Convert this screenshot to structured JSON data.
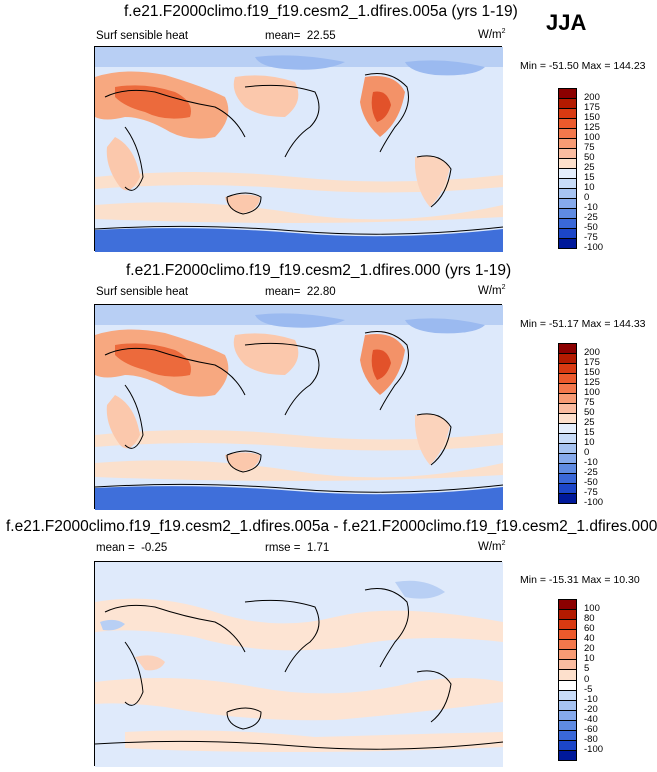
{
  "season": "JJA",
  "panels": [
    {
      "title": "f.e21.F2000climo.f19_f19.cesm2_1.dfires.005a (yrs 1-19)",
      "left_label": "Surf sensible heat",
      "mean_label": "mean=",
      "mean_value": "22.55",
      "rmse_label": "",
      "rmse_value": "",
      "units": "W/m",
      "units_exp": "2",
      "minmax": "Min = -51.50 Max = 144.23",
      "colorbar": {
        "labels": [
          "200",
          "175",
          "150",
          "125",
          "100",
          "75",
          "50",
          "25",
          "15",
          "10",
          "0",
          "-10",
          "-25",
          "-50",
          "-75",
          "-100"
        ],
        "colors": [
          "#8b0000",
          "#b31a00",
          "#d93a12",
          "#ec5a2c",
          "#f3784c",
          "#f79b74",
          "#fabca0",
          "#fde0cc",
          "#e4eefc",
          "#c8dcf8",
          "#a6c3f1",
          "#86aaec",
          "#5f8be2",
          "#3a68d8",
          "#1c46c8",
          "#00199a"
        ]
      },
      "chart_data": {
        "type": "heatmap",
        "title": "f.e21.F2000climo.f19_f19.cesm2_1.dfires.005a (yrs 1-19)",
        "variable": "Surf sensible heat",
        "units": "W/m2",
        "mean": 22.55,
        "min": -51.5,
        "max": 144.23,
        "contour_levels": [
          -100,
          -75,
          -50,
          -25,
          -10,
          0,
          10,
          15,
          25,
          50,
          75,
          100,
          125,
          150,
          175,
          200
        ]
      }
    },
    {
      "title": "f.e21.F2000climo.f19_f19.cesm2_1.dfires.000 (yrs 1-19)",
      "left_label": "Surf sensible heat",
      "mean_label": "mean=",
      "mean_value": "22.80",
      "rmse_label": "",
      "rmse_value": "",
      "units": "W/m",
      "units_exp": "2",
      "minmax": "Min = -51.17 Max = 144.33",
      "colorbar": {
        "labels": [
          "200",
          "175",
          "150",
          "125",
          "100",
          "75",
          "50",
          "25",
          "15",
          "10",
          "0",
          "-10",
          "-25",
          "-50",
          "-75",
          "-100"
        ],
        "colors": [
          "#8b0000",
          "#b31a00",
          "#d93a12",
          "#ec5a2c",
          "#f3784c",
          "#f79b74",
          "#fabca0",
          "#fde0cc",
          "#e4eefc",
          "#c8dcf8",
          "#a6c3f1",
          "#86aaec",
          "#5f8be2",
          "#3a68d8",
          "#1c46c8",
          "#00199a"
        ]
      },
      "chart_data": {
        "type": "heatmap",
        "title": "f.e21.F2000climo.f19_f19.cesm2_1.dfires.000 (yrs 1-19)",
        "variable": "Surf sensible heat",
        "units": "W/m2",
        "mean": 22.8,
        "min": -51.17,
        "max": 144.33,
        "contour_levels": [
          -100,
          -75,
          -50,
          -25,
          -10,
          0,
          10,
          15,
          25,
          50,
          75,
          100,
          125,
          150,
          175,
          200
        ]
      }
    },
    {
      "title": "f.e21.F2000climo.f19_f19.cesm2_1.dfires.005a - f.e21.F2000climo.f19_f19.cesm2_1.dfires.000",
      "left_label": "",
      "mean_label": "mean =",
      "mean_value": "-0.25",
      "rmse_label": "rmse =",
      "rmse_value": "1.71",
      "units": "W/m",
      "units_exp": "2",
      "minmax": "Min = -15.31 Max = 10.30",
      "colorbar": {
        "labels": [
          "100",
          "80",
          "60",
          "40",
          "20",
          "10",
          "5",
          "0",
          "-5",
          "-10",
          "-20",
          "-40",
          "-60",
          "-80",
          "-100"
        ],
        "colors": [
          "#8b0000",
          "#b31a00",
          "#d93a12",
          "#ec5a2c",
          "#f3784c",
          "#f79b74",
          "#fabca0",
          "#fde0cc",
          "#ffffff",
          "#c8dcf8",
          "#a6c3f1",
          "#86aaec",
          "#5f8be2",
          "#3a68d8",
          "#1c46c8",
          "#00199a"
        ]
      },
      "chart_data": {
        "type": "heatmap",
        "title": "f.e21.F2000climo.f19_f19.cesm2_1.dfires.005a - f.e21.F2000climo.f19_f19.cesm2_1.dfires.000",
        "units": "W/m2",
        "mean": -0.25,
        "rmse": 1.71,
        "min": -15.31,
        "max": 10.3,
        "contour_levels": [
          -100,
          -80,
          -60,
          -40,
          -20,
          -10,
          -5,
          0,
          5,
          10,
          20,
          40,
          60,
          80,
          100
        ]
      }
    }
  ]
}
